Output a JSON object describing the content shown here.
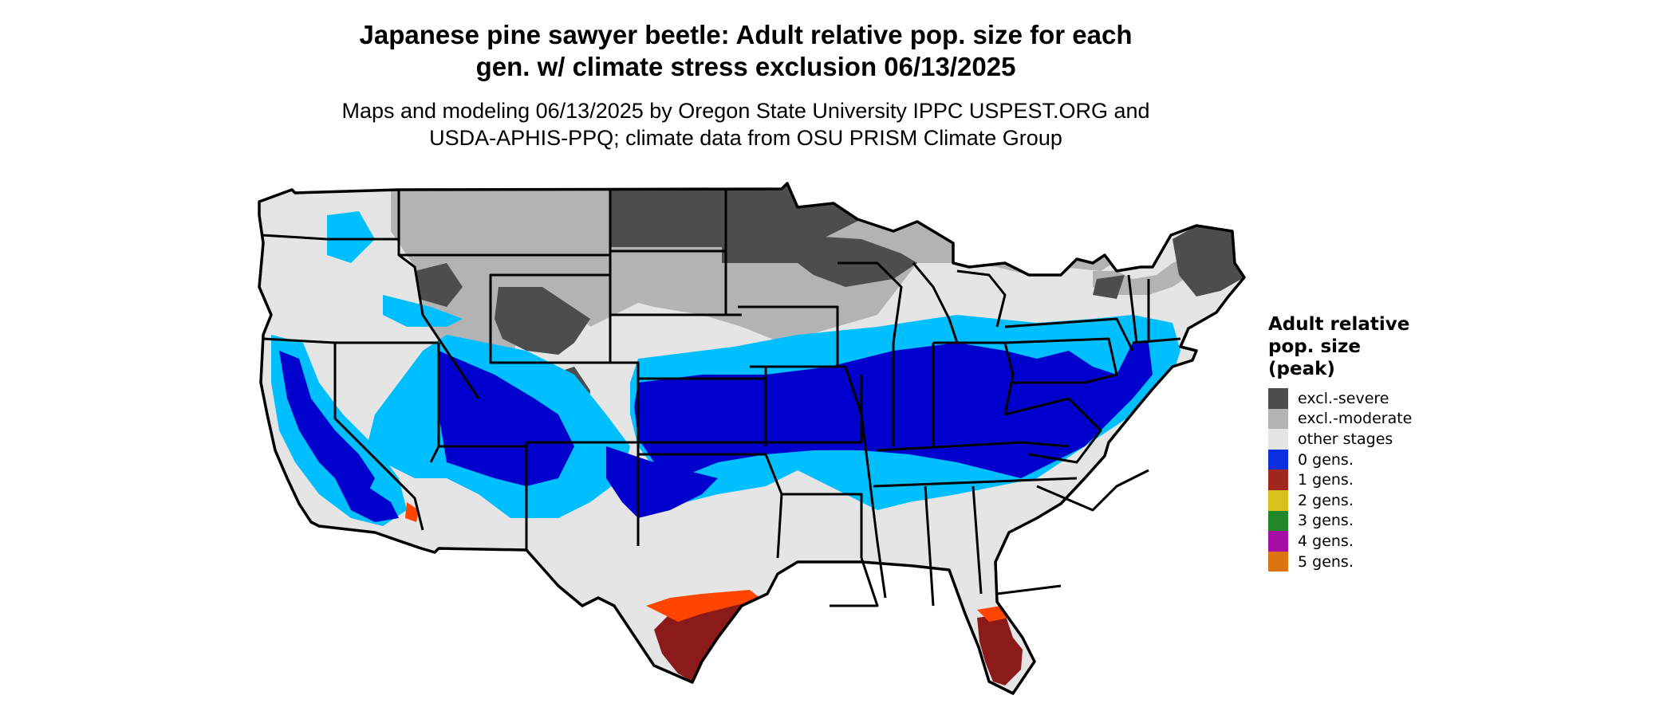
{
  "title": {
    "line1": "Japanese pine sawyer beetle: Adult relative pop. size for each",
    "line2": "gen. w/ climate stress exclusion 06/13/2025"
  },
  "subtitle": {
    "line1": "Maps and modeling 06/13/2025 by Oregon State University IPPC USPEST.ORG and",
    "line2": "USDA-APHIS-PPQ; climate data from OSU PRISM Climate Group"
  },
  "legend": {
    "title_line1": "Adult relative",
    "title_line2": "pop. size",
    "title_line3": "(peak)",
    "items": [
      {
        "label": "excl.-severe",
        "color": "#4d4d4d"
      },
      {
        "label": "excl.-moderate",
        "color": "#b3b3b3"
      },
      {
        "label": "other stages",
        "color": "#e5e5e5"
      },
      {
        "label": "0 gens.",
        "color": "#0a2fe0"
      },
      {
        "label": "1 gens.",
        "color": "#a1281c"
      },
      {
        "label": "2 gens.",
        "color": "#d8c11c"
      },
      {
        "label": "3 gens.",
        "color": "#22862a"
      },
      {
        "label": "4 gens.",
        "color": "#a60fa5"
      },
      {
        "label": "5 gens.",
        "color": "#dc7412"
      }
    ]
  },
  "map_colors": {
    "other": "#e5e5e5",
    "excl_moderate": "#b3b3b3",
    "excl_severe": "#4d4d4d",
    "cyan": "#00bfff",
    "blue_light": "#1e90ff",
    "blue": "#0000cd",
    "red": "#8b1a1a",
    "orange": "#ff4500",
    "outline": "#000000"
  }
}
